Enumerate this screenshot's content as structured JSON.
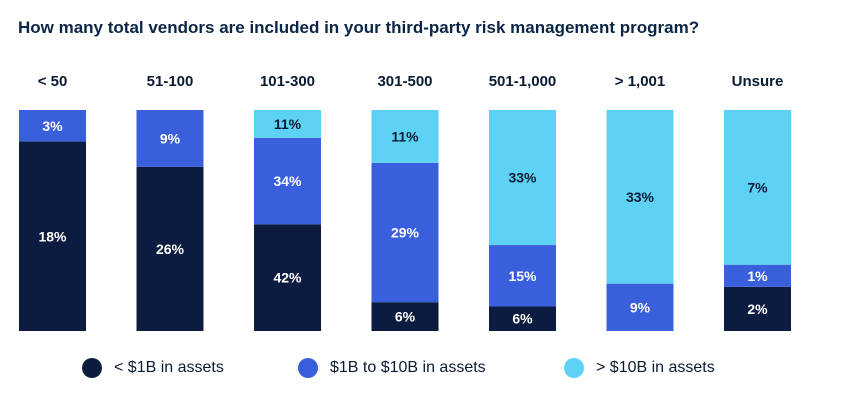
{
  "chart_data": {
    "type": "bar",
    "stacked": true,
    "normalized": true,
    "title": "How many total vendors are included in your third-party risk management program?",
    "categories": [
      "< 50",
      "51-100",
      "101-300",
      "301-500",
      "501-1,000",
      "> 1,001",
      "Unsure"
    ],
    "series": [
      {
        "name": "< $1B in assets",
        "color": "#0c1c40",
        "values": [
          18,
          26,
          42,
          6,
          6,
          0,
          2
        ]
      },
      {
        "name": "$1B to $10B in assets",
        "color": "#3a5fdc",
        "values": [
          3,
          9,
          34,
          29,
          15,
          9,
          1
        ]
      },
      {
        "name": "> $10B in assets",
        "color": "#5ed2f5",
        "values": [
          0,
          0,
          11,
          11,
          33,
          33,
          7
        ]
      }
    ],
    "value_suffix": "%",
    "legend_position": "bottom",
    "grid": false
  }
}
